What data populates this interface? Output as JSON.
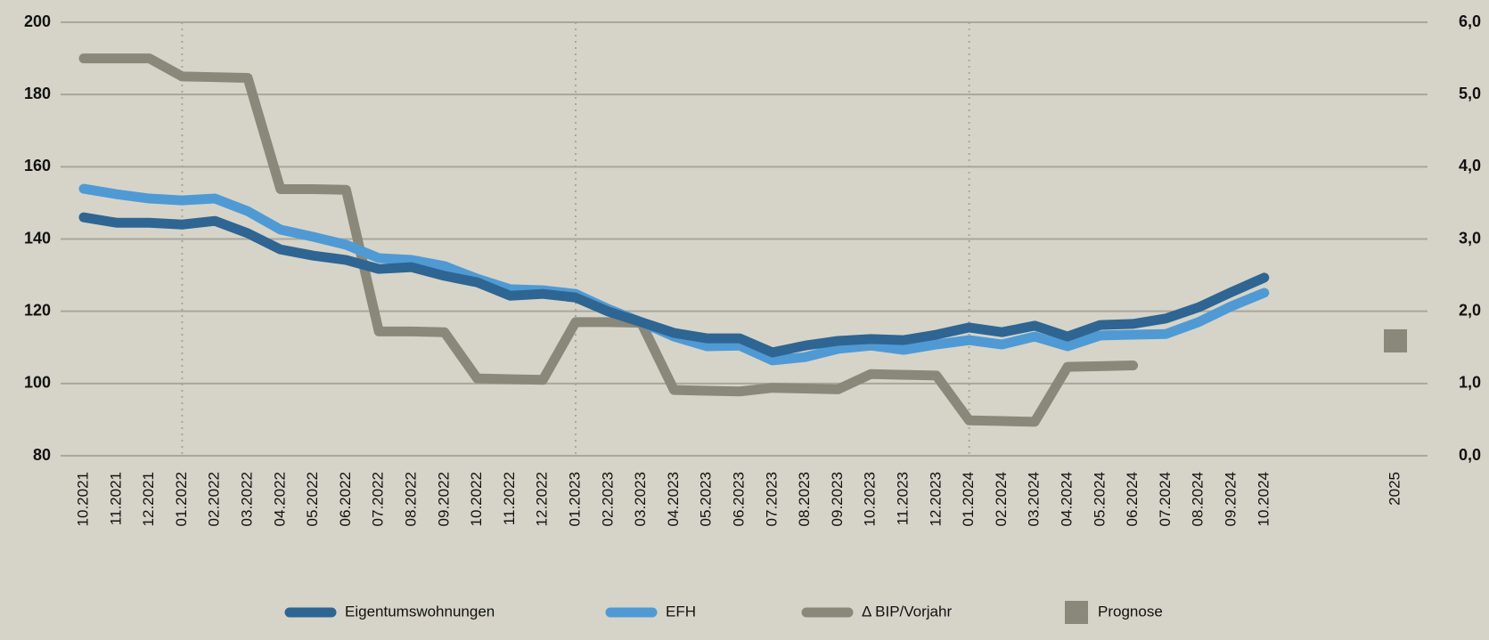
{
  "chart_data": {
    "type": "line",
    "categories": [
      "10.2021",
      "11.2021",
      "12.2021",
      "01.2022",
      "02.2022",
      "03.2022",
      "04.2022",
      "05.2022",
      "06.2022",
      "07.2022",
      "08.2022",
      "09.2022",
      "10.2022",
      "11.2022",
      "12.2022",
      "01.2023",
      "02.2023",
      "03.2023",
      "04.2023",
      "05.2023",
      "06.2023",
      "07.2023",
      "08.2023",
      "09.2023",
      "10.2023",
      "11.2023",
      "12.2023",
      "01.2024",
      "02.2024",
      "03.2024",
      "04.2024",
      "05.2024",
      "06.2024",
      "07.2024",
      "08.2024",
      "09.2024",
      "10.2024",
      null,
      null,
      null,
      "2025"
    ],
    "series": [
      {
        "name": "Eigentumswohnungen",
        "color": "#2e6593",
        "values": [
          146.0,
          144.5,
          144.5,
          144.0,
          145.0,
          141.6,
          137.1,
          135.4,
          134.2,
          131.7,
          132.2,
          129.8,
          128.0,
          124.3,
          124.8,
          123.8,
          119.9,
          117.0,
          114.0,
          112.5,
          112.5,
          108.6,
          110.5,
          111.8,
          112.3,
          112.0,
          113.5,
          115.5,
          114.2,
          116.0,
          113.0,
          116.2,
          116.5,
          118.0,
          121.1,
          125.3,
          129.3,
          null,
          null,
          null,
          null
        ]
      },
      {
        "name": "EFH",
        "color": "#4f9ad4",
        "values": [
          153.9,
          152.4,
          151.2,
          150.7,
          151.2,
          147.7,
          142.6,
          140.6,
          138.4,
          134.7,
          134.2,
          132.5,
          129.0,
          126.1,
          125.8,
          124.8,
          120.6,
          117.0,
          113.0,
          110.3,
          110.5,
          106.4,
          107.3,
          109.6,
          110.5,
          109.3,
          110.8,
          112.0,
          110.8,
          113.0,
          110.3,
          113.3,
          113.5,
          113.7,
          117.0,
          121.4,
          125.1,
          null,
          null,
          null,
          null
        ]
      },
      {
        "name": "Δ BIP/Vorjahr",
        "color": "#8a887a",
        "axis": "y2",
        "values": [
          5.5,
          5.5,
          5.5,
          5.25,
          5.24,
          5.23,
          3.69,
          3.69,
          3.68,
          1.72,
          1.72,
          1.71,
          1.07,
          1.06,
          1.05,
          1.85,
          1.85,
          1.84,
          0.91,
          0.9,
          0.89,
          0.94,
          0.93,
          0.92,
          1.13,
          1.12,
          1.11,
          0.49,
          0.48,
          0.47,
          1.23,
          1.24,
          1.25,
          null,
          null,
          null,
          null,
          null,
          null,
          null,
          null
        ]
      },
      {
        "name": "Prognose",
        "color": "#8a887a",
        "axis": "y2",
        "marker": "square",
        "values": [
          null,
          null,
          null,
          null,
          null,
          null,
          null,
          null,
          null,
          null,
          null,
          null,
          null,
          null,
          null,
          null,
          null,
          null,
          null,
          null,
          null,
          null,
          null,
          null,
          null,
          null,
          null,
          null,
          null,
          null,
          null,
          null,
          null,
          null,
          null,
          null,
          null,
          null,
          null,
          null,
          1.59
        ]
      }
    ],
    "ylim": [
      80,
      200
    ],
    "yticks": [
      80,
      100,
      120,
      140,
      160,
      180,
      200
    ],
    "y2lim": [
      0,
      6
    ],
    "y2ticks": [
      {
        "value": 0,
        "label": "0,0"
      },
      {
        "value": 1,
        "label": "1,0"
      },
      {
        "value": 2,
        "label": "2,0"
      },
      {
        "value": 3,
        "label": "3,0"
      },
      {
        "value": 4,
        "label": "4,0"
      },
      {
        "value": 5,
        "label": "5,0"
      },
      {
        "value": 6,
        "label": "6,0"
      }
    ],
    "grid": true,
    "dotted_vlines": [
      3,
      15,
      27
    ],
    "legend": "bottom"
  }
}
